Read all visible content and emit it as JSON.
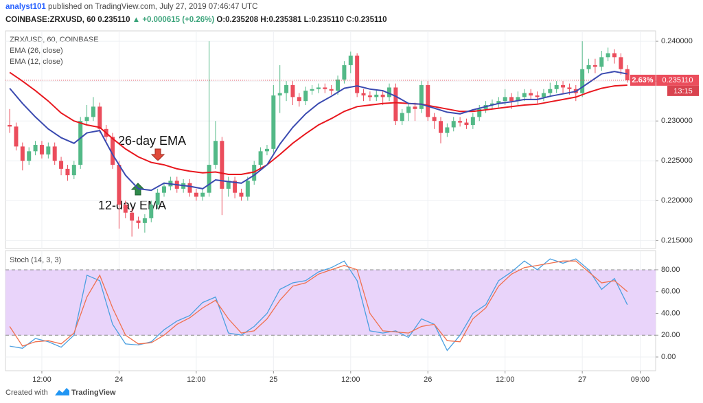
{
  "header": {
    "publisher": "analyst101",
    "published": " published on TradingView.com, July 27, 2019 07:46:47 UTC",
    "symbol": "COINBASE:ZRXUSD, 60",
    "price": "0.235110",
    "change": "▲ +0.000615 (+0.26%)",
    "open": "O:0.235208",
    "high": "H:0.235381",
    "low": "L:0.235110",
    "close": "C:0.235110"
  },
  "footer": {
    "created": "Created with",
    "brand": "TradingView"
  },
  "chart_data": [
    {
      "type": "candlestick",
      "title": "ZRX/USD, 60, COINBASE",
      "up_color": "#53b987",
      "down_color": "#eb4d5c",
      "xlim": [
        -0.65,
        100.4
      ],
      "ylim": [
        0.214,
        0.2413
      ],
      "yticks": [
        {
          "value": 0.215,
          "label": "0.215000"
        },
        {
          "value": 0.22,
          "label": "0.220000"
        },
        {
          "value": 0.225,
          "label": "0.225000"
        },
        {
          "value": 0.23,
          "label": "0.230000"
        },
        {
          "value": 0.235,
          "label": "0.235000"
        },
        {
          "value": 0.24,
          "label": "0.240000"
        }
      ],
      "last_price": {
        "value": 0.23511,
        "label": "0.235110"
      },
      "change_label": "2.63%",
      "countdown": "13:15",
      "annotations": [
        "26-day EMA",
        "12-day EMA"
      ],
      "ohlc": [
        [
          0.2295,
          0.2315,
          0.2285,
          0.2293
        ],
        [
          0.2293,
          0.2298,
          0.2263,
          0.2268
        ],
        [
          0.2268,
          0.2273,
          0.2238,
          0.225
        ],
        [
          0.225,
          0.2267,
          0.2245,
          0.2262
        ],
        [
          0.2262,
          0.2275,
          0.2257,
          0.227
        ],
        [
          0.227,
          0.2275,
          0.2253,
          0.2258
        ],
        [
          0.2258,
          0.2273,
          0.2253,
          0.2268
        ],
        [
          0.2268,
          0.2273,
          0.2245,
          0.225
        ],
        [
          0.225,
          0.2255,
          0.2232,
          0.224
        ],
        [
          0.224,
          0.2245,
          0.2225,
          0.2232
        ],
        [
          0.2232,
          0.225,
          0.2227,
          0.2245
        ],
        [
          0.2245,
          0.2305,
          0.224,
          0.23
        ],
        [
          0.23,
          0.232,
          0.2295,
          0.2305
        ],
        [
          0.2305,
          0.233,
          0.23,
          0.2318
        ],
        [
          0.2318,
          0.2323,
          0.2285,
          0.229
        ],
        [
          0.229,
          0.2295,
          0.2275,
          0.228
        ],
        [
          0.228,
          0.2285,
          0.224,
          0.2245
        ],
        [
          0.2245,
          0.225,
          0.2165,
          0.2195
        ],
        [
          0.2195,
          0.22,
          0.2178,
          0.2185
        ],
        [
          0.2185,
          0.219,
          0.2155,
          0.2175
        ],
        [
          0.2175,
          0.218,
          0.2165,
          0.2172
        ],
        [
          0.2172,
          0.2183,
          0.216,
          0.2178
        ],
        [
          0.2178,
          0.22,
          0.2173,
          0.2195
        ],
        [
          0.2195,
          0.2215,
          0.219,
          0.221
        ],
        [
          0.221,
          0.2223,
          0.2205,
          0.2218
        ],
        [
          0.2218,
          0.223,
          0.2213,
          0.2225
        ],
        [
          0.2225,
          0.223,
          0.221,
          0.2215
        ],
        [
          0.2215,
          0.2227,
          0.221,
          0.2222
        ],
        [
          0.2222,
          0.2227,
          0.2205,
          0.221
        ],
        [
          0.221,
          0.2215,
          0.22,
          0.2205
        ],
        [
          0.2205,
          0.2215,
          0.22,
          0.221
        ],
        [
          0.221,
          0.24,
          0.2205,
          0.2245
        ],
        [
          0.2245,
          0.23,
          0.224,
          0.2275
        ],
        [
          0.2275,
          0.228,
          0.2182,
          0.2215
        ],
        [
          0.2215,
          0.223,
          0.2205,
          0.2225
        ],
        [
          0.2225,
          0.223,
          0.2203,
          0.221
        ],
        [
          0.221,
          0.2215,
          0.22,
          0.2205
        ],
        [
          0.2205,
          0.223,
          0.22,
          0.2225
        ],
        [
          0.2225,
          0.225,
          0.222,
          0.2245
        ],
        [
          0.2245,
          0.2267,
          0.224,
          0.2262
        ],
        [
          0.2262,
          0.227,
          0.2257,
          0.2265
        ],
        [
          0.2265,
          0.2345,
          0.226,
          0.2332
        ],
        [
          0.2332,
          0.237,
          0.231,
          0.2335
        ],
        [
          0.2335,
          0.235,
          0.2325,
          0.2345
        ],
        [
          0.2345,
          0.235,
          0.232,
          0.233
        ],
        [
          0.233,
          0.2335,
          0.2318,
          0.2325
        ],
        [
          0.2325,
          0.2343,
          0.232,
          0.2338
        ],
        [
          0.2338,
          0.2345,
          0.2333,
          0.234
        ],
        [
          0.234,
          0.2347,
          0.2335,
          0.2342
        ],
        [
          0.2342,
          0.2347,
          0.2335,
          0.234
        ],
        [
          0.234,
          0.2345,
          0.2333,
          0.2338
        ],
        [
          0.2338,
          0.2357,
          0.2333,
          0.2352
        ],
        [
          0.2352,
          0.2375,
          0.2347,
          0.237
        ],
        [
          0.237,
          0.2387,
          0.236,
          0.2382
        ],
        [
          0.2382,
          0.2385,
          0.233,
          0.2335
        ],
        [
          0.2335,
          0.234,
          0.2325,
          0.2332
        ],
        [
          0.2332,
          0.2337,
          0.2325,
          0.233
        ],
        [
          0.233,
          0.2338,
          0.2325,
          0.2333
        ],
        [
          0.2333,
          0.2338,
          0.232,
          0.233
        ],
        [
          0.233,
          0.2347,
          0.2325,
          0.2342
        ],
        [
          0.2342,
          0.2347,
          0.2295,
          0.23
        ],
        [
          0.23,
          0.2315,
          0.2295,
          0.231
        ],
        [
          0.231,
          0.2323,
          0.23,
          0.2318
        ],
        [
          0.2318,
          0.2323,
          0.23,
          0.2315
        ],
        [
          0.2315,
          0.235,
          0.231,
          0.2345
        ],
        [
          0.2345,
          0.235,
          0.23,
          0.2305
        ],
        [
          0.2305,
          0.231,
          0.229,
          0.23
        ],
        [
          0.23,
          0.2305,
          0.2272,
          0.2285
        ],
        [
          0.2285,
          0.2297,
          0.228,
          0.2292
        ],
        [
          0.2292,
          0.2305,
          0.2287,
          0.23
        ],
        [
          0.23,
          0.2305,
          0.2293,
          0.2298
        ],
        [
          0.2298,
          0.2303,
          0.229,
          0.2295
        ],
        [
          0.2295,
          0.231,
          0.229,
          0.2305
        ],
        [
          0.2305,
          0.232,
          0.23,
          0.2315
        ],
        [
          0.2315,
          0.2325,
          0.231,
          0.232
        ],
        [
          0.232,
          0.2327,
          0.2315,
          0.2322
        ],
        [
          0.2322,
          0.233,
          0.2317,
          0.2325
        ],
        [
          0.2325,
          0.234,
          0.232,
          0.233
        ],
        [
          0.233,
          0.2335,
          0.2315,
          0.2325
        ],
        [
          0.2325,
          0.2337,
          0.232,
          0.233
        ],
        [
          0.233,
          0.234,
          0.2325,
          0.2335
        ],
        [
          0.2335,
          0.234,
          0.2327,
          0.2332
        ],
        [
          0.2332,
          0.2337,
          0.2322,
          0.233
        ],
        [
          0.233,
          0.234,
          0.2325,
          0.2335
        ],
        [
          0.2335,
          0.2348,
          0.233,
          0.234
        ],
        [
          0.234,
          0.235,
          0.2335,
          0.2345
        ],
        [
          0.2345,
          0.235,
          0.2335,
          0.2342
        ],
        [
          0.2342,
          0.2347,
          0.2333,
          0.234
        ],
        [
          0.234,
          0.2345,
          0.2325,
          0.2335
        ],
        [
          0.2335,
          0.24,
          0.233,
          0.2365
        ],
        [
          0.2365,
          0.2378,
          0.236,
          0.237
        ],
        [
          0.237,
          0.2378,
          0.236,
          0.2368
        ],
        [
          0.2368,
          0.2388,
          0.2363,
          0.238
        ],
        [
          0.238,
          0.2392,
          0.2375,
          0.2385
        ],
        [
          0.2385,
          0.239,
          0.2372,
          0.238
        ],
        [
          0.238,
          0.2385,
          0.2358,
          0.2365
        ],
        [
          0.2365,
          0.237,
          0.2348,
          0.2351
        ]
      ],
      "x": [
        0,
        2,
        4,
        6,
        8,
        10,
        12,
        14,
        16,
        18,
        20,
        22,
        24,
        26,
        28,
        30,
        32,
        34,
        36,
        38,
        40,
        42,
        44,
        46,
        48,
        50,
        52,
        54,
        56,
        58,
        60,
        62,
        64,
        66,
        68,
        70,
        72,
        74,
        76,
        78,
        80,
        82,
        84,
        86,
        88,
        90,
        92,
        94,
        96
      ],
      "series": [
        {
          "name": "EMA (26, close)",
          "color": "#e8171e",
          "values": [
            0.2361,
            0.235,
            0.2338,
            0.2325,
            0.231,
            0.23,
            0.2295,
            0.2292,
            0.2278,
            0.2265,
            0.2255,
            0.2248,
            0.2245,
            0.224,
            0.2237,
            0.2235,
            0.2236,
            0.2233,
            0.2233,
            0.2236,
            0.2245,
            0.2258,
            0.2272,
            0.2284,
            0.2295,
            0.2303,
            0.2312,
            0.2318,
            0.232,
            0.2322,
            0.2323,
            0.2322,
            0.2321,
            0.2318,
            0.2315,
            0.2312,
            0.2312,
            0.2314,
            0.2316,
            0.2318,
            0.232,
            0.2321,
            0.2324,
            0.2327,
            0.233,
            0.2336,
            0.2341,
            0.2344,
            0.2345
          ]
        },
        {
          "name": "EMA (12, close)",
          "color": "#3a4ab0",
          "values": [
            0.2341,
            0.2322,
            0.2305,
            0.229,
            0.2279,
            0.2272,
            0.2285,
            0.2288,
            0.2258,
            0.2232,
            0.2215,
            0.2213,
            0.2222,
            0.222,
            0.2218,
            0.2215,
            0.2226,
            0.2224,
            0.2222,
            0.2232,
            0.2245,
            0.2271,
            0.2292,
            0.2309,
            0.2322,
            0.2331,
            0.2341,
            0.2344,
            0.234,
            0.2338,
            0.2331,
            0.2322,
            0.2321,
            0.2316,
            0.2311,
            0.2309,
            0.2314,
            0.2318,
            0.2322,
            0.2324,
            0.2327,
            0.2327,
            0.2331,
            0.2334,
            0.2337,
            0.2348,
            0.2359,
            0.2362,
            0.2359
          ]
        }
      ]
    },
    {
      "type": "line",
      "title": "Stoch (14, 3, 3)",
      "xlim": [
        -0.65,
        100.4
      ],
      "ylim": [
        -12.6,
        97.6
      ],
      "yticks": [
        {
          "value": 0,
          "label": "0.00"
        },
        {
          "value": 20,
          "label": "20.00"
        },
        {
          "value": 40,
          "label": "40.00"
        },
        {
          "value": 60,
          "label": "60.00"
        },
        {
          "value": 80,
          "label": "80.00"
        }
      ],
      "band": [
        20,
        80
      ],
      "band_color": "#e9d4fa",
      "xticks": [
        {
          "value": 5,
          "label": "12:00"
        },
        {
          "value": 17,
          "label": "24"
        },
        {
          "value": 29,
          "label": "12:00"
        },
        {
          "value": 41,
          "label": "25"
        },
        {
          "value": 53,
          "label": "12:00"
        },
        {
          "value": 65,
          "label": "26"
        },
        {
          "value": 77,
          "label": "12:00"
        },
        {
          "value": 89,
          "label": "27"
        },
        {
          "value": 98,
          "label": "09:00"
        }
      ],
      "x": [
        0,
        2,
        4,
        6,
        8,
        10,
        12,
        14,
        16,
        18,
        20,
        22,
        24,
        26,
        28,
        30,
        32,
        34,
        36,
        38,
        40,
        42,
        44,
        46,
        48,
        50,
        52,
        54,
        56,
        58,
        60,
        62,
        64,
        66,
        68,
        70,
        72,
        74,
        76,
        78,
        80,
        82,
        84,
        86,
        88,
        90,
        92,
        94,
        96
      ],
      "series": [
        {
          "color": "#4a9fe0",
          "values": [
            10,
            8,
            17,
            14,
            9,
            20,
            75,
            70,
            30,
            12,
            11,
            14,
            25,
            33,
            38,
            50,
            55,
            22,
            20,
            28,
            40,
            62,
            68,
            70,
            78,
            82,
            88,
            70,
            24,
            22,
            24,
            18,
            35,
            30,
            6,
            20,
            40,
            48,
            70,
            78,
            88,
            80,
            90,
            86,
            90,
            80,
            62,
            72,
            48
          ]
        },
        {
          "color": "#f0704e",
          "values": [
            28,
            10,
            14,
            15,
            12,
            22,
            55,
            75,
            45,
            20,
            12,
            13,
            20,
            30,
            36,
            45,
            52,
            35,
            22,
            24,
            35,
            52,
            65,
            68,
            76,
            80,
            84,
            80,
            40,
            24,
            23,
            22,
            28,
            30,
            15,
            14,
            35,
            45,
            65,
            76,
            82,
            84,
            86,
            88,
            88,
            78,
            68,
            70,
            60
          ]
        }
      ]
    }
  ]
}
